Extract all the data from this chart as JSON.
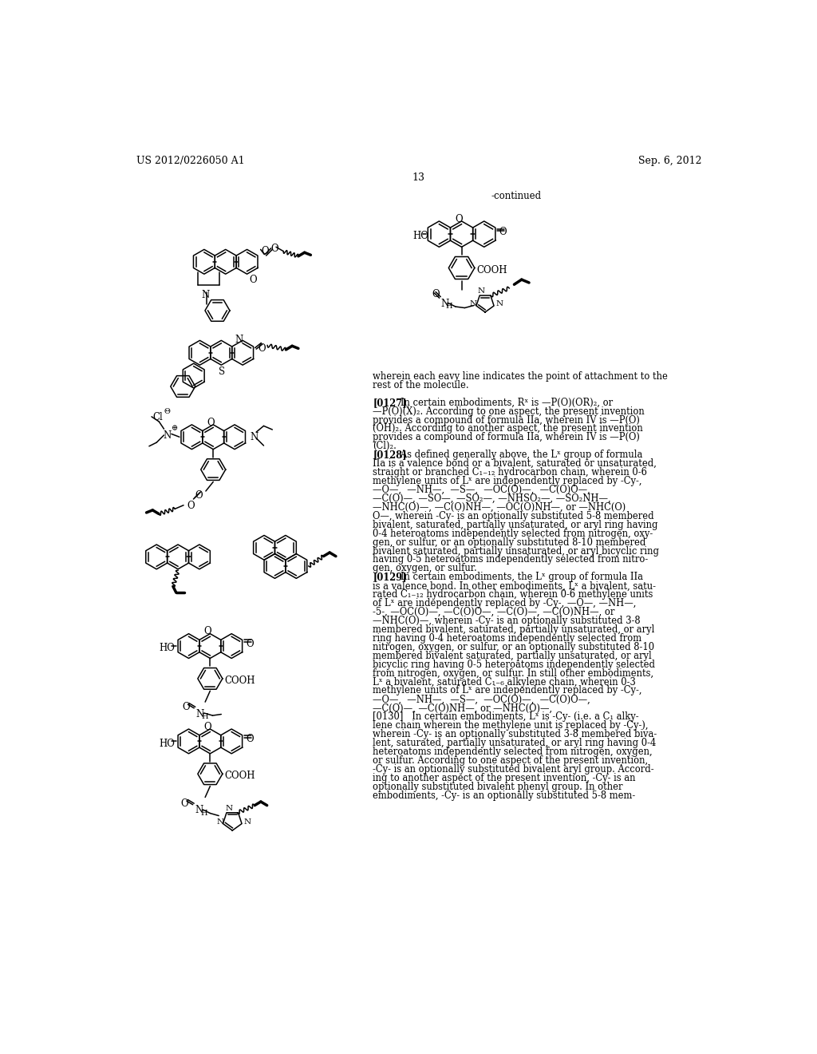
{
  "page_width": 10.24,
  "page_height": 13.2,
  "background_color": "#ffffff",
  "header_left": "US 2012/0226050 A1",
  "header_right": "Sep. 6, 2012",
  "page_number": "13",
  "continued_label": "-continued",
  "right_text_lines": [
    "wherein each eavy line indicates the point of attachment to the",
    "rest of the molecule.",
    "",
    "[0127]   In certain embodiments, Rˣ is —P(O)(OR)₂, or",
    "—P(O)(X)₂. According to one aspect, the present invention",
    "provides a compound of formula IIa, wherein IV is —P(O)",
    "(OH)₂. According to another aspect, the present invention",
    "provides a compound of formula IIa, wherein IV is —P(O)",
    "(Cl)₂.",
    "[0128]   As defined generally above, the Lˣ group of formula",
    "IIa is a valence bond or a bivalent, saturated or unsaturated,",
    "straight or branched C₁₋₁₂ hydrocarbon chain, wherein 0-6",
    "methylene units of Lˣ are independently replaced by -Cy-,",
    "—O—,  —NH—,  —S—,  —OC(O)—,  —C(O)O—,",
    "—C(O)—, —SO—, —SO₂—, —NHSO₂—, —SO₂NH—,",
    "—NHC(O)—, —C(O)NH—, —OC(O)NH—, or —NHC(O)",
    "O—, wherein -Cy- is an optionally substituted 5-8 membered",
    "bivalent, saturated, partially unsaturated, or aryl ring having",
    "0-4 heteroatoms independently selected from nitrogen, oxy-",
    "gen, or sulfur, or an optionally substituted 8-10 membered",
    "bivalent saturated, partially unsaturated, or aryl bicyclic ring",
    "having 0-5 heteroatoms independently selected from nitro-",
    "gen, oxygen, or sulfur.",
    "[0129]   In certain embodiments, the Lˣ group of formula IIa",
    "is a valence bond. In other embodiments, Lˣ a bivalent, satu-",
    "rated C₁₋₁₂ hydrocarbon chain, wherein 0-6 methylene units",
    "of Lˣ are independently replaced by -Cy-, —O—, —NH—,",
    "-5-, —OC(O)—, —C(O)O—, —C(O)—, —C(O)NH—, or",
    "—NHC(O)—, wherein -Cy- is an optionally substituted 3-8",
    "membered bivalent, saturated, partially unsaturated, or aryl",
    "ring having 0-4 heteroatoms independently selected from",
    "nitrogen, oxygen, or sulfur, or an optionally substituted 8-10",
    "membered bivalent saturated, partially unsaturated, or aryl",
    "bicyclic ring having 0-5 heteroatoms independently selected",
    "from nitrogen, oxygen, or sulfur. In still other embodiments,",
    "Lˣ a bivalent, saturated C₁₋₆ alkylene chain, wherein 0-3",
    "methylene units of Lˣ are independently replaced by -Cy-,",
    "—O—,  —NH—,  —S—,  —OC(O)—,  —C(O)O—,",
    "—C(O)—, —C(O)NH—, or —NHC(O)—,",
    "[0130]   In certain embodiments, Lˣ is -Cy- (i.e. a C₁ alky-",
    "lene chain wherein the methylene unit is replaced by -Cy-),",
    "wherein -Cy- is an optionally substituted 3-8 membered biva-",
    "lent, saturated, partially unsaturated, or aryl ring having 0-4",
    "heteroatoms independently selected from nitrogen, oxygen,",
    "or sulfur. According to one aspect of the present invention,",
    "-Cy- is an optionally substituted bivalent aryl group. Accord-",
    "ing to another aspect of the present invention, -Cy- is an",
    "optionally substituted bivalent phenyl group. In other",
    "embodiments, -Cy- is an optionally substituted 5-8 mem-"
  ]
}
